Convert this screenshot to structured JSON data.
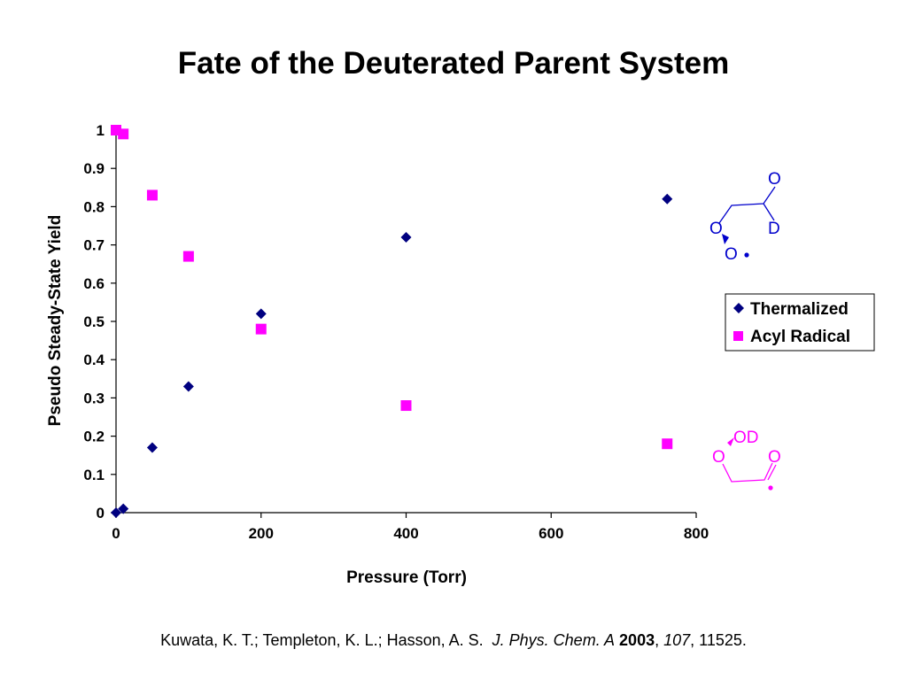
{
  "title": "Fate of the Deuterated Parent System",
  "chart_data": {
    "type": "scatter",
    "title": "Fate of the Deuterated Parent System",
    "xlabel": "Pressure (Torr)",
    "ylabel": "Pseudo Steady-State Yield",
    "xlim": [
      0,
      800
    ],
    "ylim": [
      0,
      1
    ],
    "x_ticks": [
      "0",
      "200",
      "400",
      "600",
      "800"
    ],
    "y_ticks": [
      "0",
      "0.1",
      "0.2",
      "0.3",
      "0.4",
      "0.5",
      "0.6",
      "0.7",
      "0.8",
      "0.9",
      "1"
    ],
    "grid": false,
    "legend_position": "right",
    "series": [
      {
        "name": "Thermalized",
        "marker": "diamond",
        "color": "#000080",
        "points": [
          [
            0,
            0.0
          ],
          [
            10,
            0.01
          ],
          [
            50,
            0.17
          ],
          [
            100,
            0.33
          ],
          [
            200,
            0.52
          ],
          [
            400,
            0.72
          ],
          [
            760,
            0.82
          ]
        ]
      },
      {
        "name": "Acyl Radical",
        "marker": "square",
        "color": "#FF00FF",
        "points": [
          [
            0,
            1.0
          ],
          [
            10,
            0.99
          ],
          [
            50,
            0.83
          ],
          [
            100,
            0.67
          ],
          [
            200,
            0.48
          ],
          [
            400,
            0.28
          ],
          [
            760,
            0.18
          ]
        ]
      }
    ]
  },
  "structures": {
    "thermalized": {
      "color": "#0000CC",
      "labels": [
        "O",
        "D",
        "O",
        "O"
      ]
    },
    "acyl": {
      "color": "#FF00FF",
      "labels": [
        "OD",
        "O",
        "O"
      ]
    }
  },
  "citation": {
    "authors": "Kuwata, K. T.; Templeton, K. L.; Hasson, A. S.",
    "journal": "J. Phys. Chem. A",
    "year": "2003",
    "volume": "107",
    "pages": "11525."
  }
}
